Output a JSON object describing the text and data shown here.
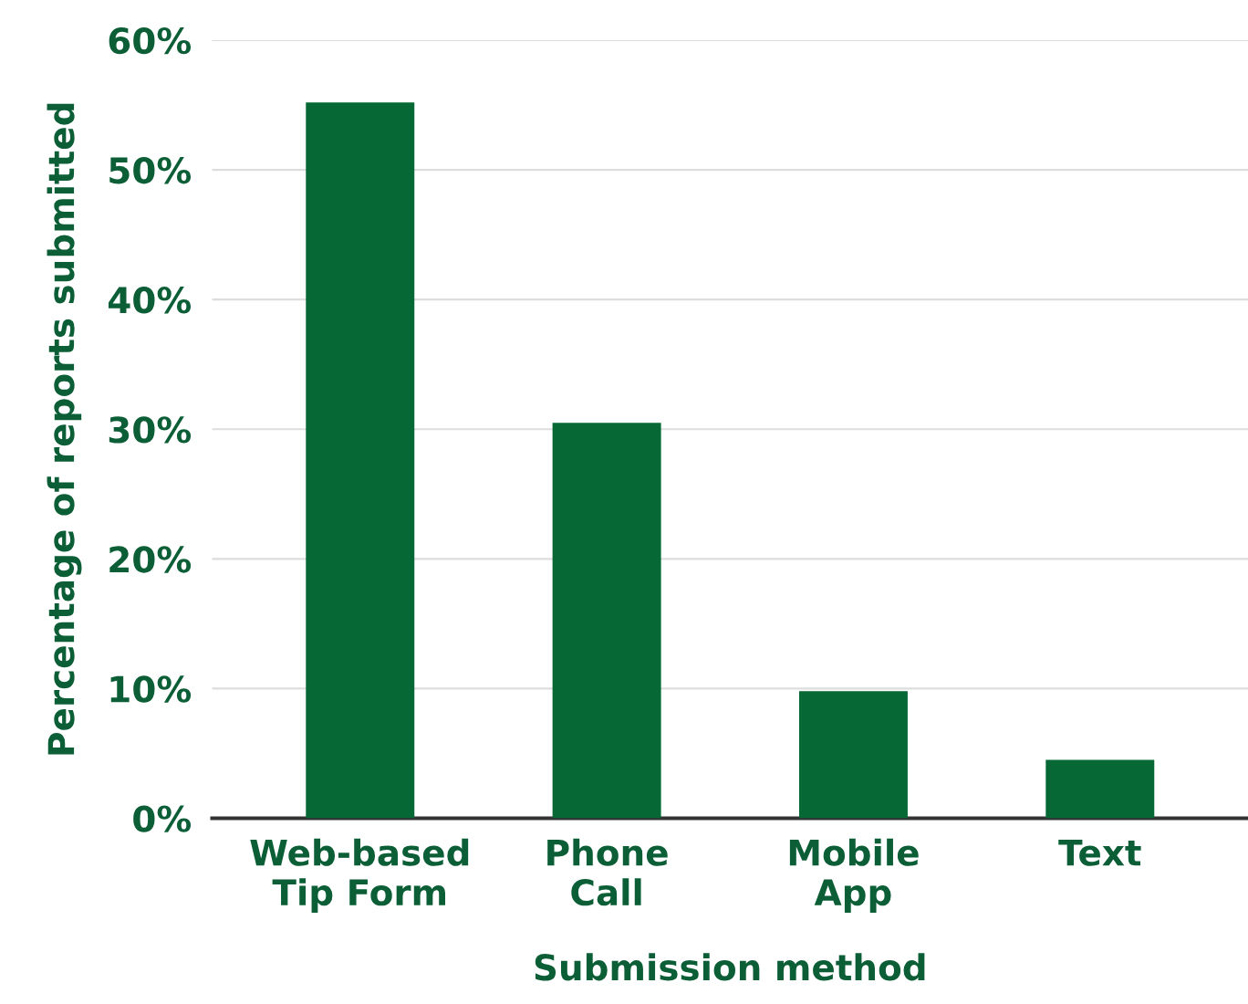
{
  "chart_data": {
    "type": "bar",
    "xlabel": "Submission method",
    "ylabel": "Percentage of reports submitted",
    "categories": [
      "Web-based\nTip Form",
      "Phone\nCall",
      "Mobile\nApp",
      "Text"
    ],
    "values": [
      55.2,
      30.5,
      9.8,
      4.5
    ],
    "color": "#056835",
    "ylim": [
      0,
      60
    ],
    "yticks": [
      {
        "value": 0,
        "label": "0%"
      },
      {
        "value": 10,
        "label": "10%"
      },
      {
        "value": 20,
        "label": "20%"
      },
      {
        "value": 30,
        "label": "30%"
      },
      {
        "value": 40,
        "label": "40%"
      },
      {
        "value": 50,
        "label": "50%"
      },
      {
        "value": 60,
        "label": "60%"
      }
    ],
    "grid": "y",
    "legend": false
  }
}
